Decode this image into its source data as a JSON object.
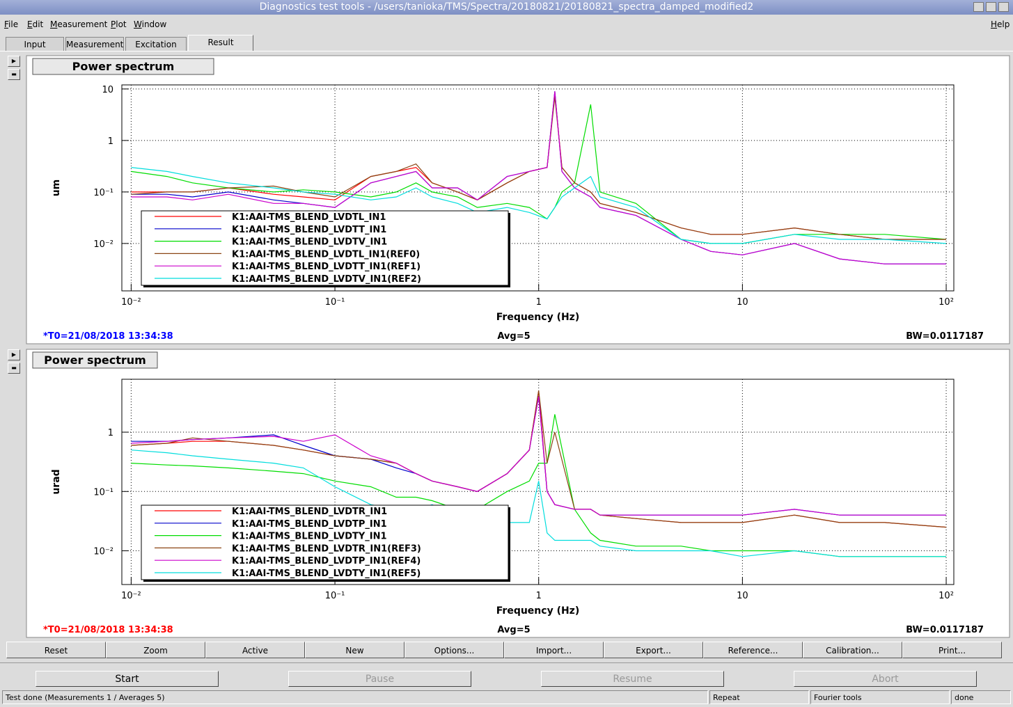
{
  "window_title": "Diagnostics test tools - /users/tanioka/TMS/Spectra/20180821/20180821_spectra_damped_modified2",
  "menu": [
    "File",
    "Edit",
    "Measurement",
    "Plot",
    "Window",
    "Help"
  ],
  "tabs": [
    "Input",
    "Measurement",
    "Excitation",
    "Result"
  ],
  "buttons": [
    "Reset",
    "Zoom",
    "Active",
    "New",
    "Options...",
    "Import...",
    "Export...",
    "Reference...",
    "Calibration...",
    "Print..."
  ],
  "controls": [
    "Start",
    "Pause",
    "Resume",
    "Abort"
  ],
  "status": [
    "Test done (Measurements 1 / Averages 5)",
    "Repeat",
    "Fourier tools",
    "done"
  ],
  "chart_data": [
    {
      "type": "line",
      "title": "Power spectrum",
      "xlabel": "Frequency (Hz)",
      "ylabel": "um",
      "xlog": true,
      "ylog": true,
      "grid": true,
      "t0": "*T0=21/08/2018 13:34:38",
      "t0_color": "#0000ff",
      "avg": "Avg=5",
      "bw": "BW=0.0117187",
      "xlim": [
        0.009,
        109
      ],
      "ylim": [
        0.0012,
        12
      ],
      "xticks": [
        {
          "value": 0.01,
          "label": "10⁻²"
        },
        {
          "value": 0.1,
          "label": "10⁻¹"
        },
        1,
        10,
        {
          "value": 100,
          "label": "10²"
        }
      ],
      "yticks": [
        10,
        1,
        {
          "value": 0.1,
          "label": "10⁻¹"
        },
        {
          "value": 0.01,
          "label": "10⁻²"
        }
      ],
      "x": [
        0.01,
        0.015,
        0.02,
        0.03,
        0.05,
        0.07,
        0.1,
        0.15,
        0.2,
        0.25,
        0.3,
        0.4,
        0.5,
        0.7,
        0.9,
        1.1,
        1.2,
        1.3,
        1.5,
        1.8,
        2,
        3,
        5,
        7,
        10,
        18,
        30,
        50,
        100
      ],
      "series": [
        {
          "name": "K1:AAI-TMS_BLEND_LVDTL_IN1",
          "color": "#ff0000",
          "values": [
            0.1,
            0.1,
            0.1,
            0.12,
            0.09,
            0.08,
            0.07,
            0.2,
            0.25,
            0.3,
            0.15,
            0.1,
            0.07,
            0.15,
            0.25,
            0.3,
            8,
            0.3,
            0.15,
            0.1,
            0.06,
            0.04,
            0.02,
            0.015,
            0.015,
            0.02,
            0.015,
            0.012,
            0.012
          ]
        },
        {
          "name": "K1:AAI-TMS_BLEND_LVDTT_IN1",
          "color": "#0000cc",
          "values": [
            0.09,
            0.09,
            0.08,
            0.1,
            0.07,
            0.06,
            0.05,
            0.15,
            0.2,
            0.25,
            0.12,
            0.12,
            0.07,
            0.2,
            0.25,
            0.3,
            9,
            0.25,
            0.12,
            0.08,
            0.05,
            0.035,
            0.012,
            0.007,
            0.006,
            0.01,
            0.005,
            0.004,
            0.004
          ]
        },
        {
          "name": "K1:AAI-TMS_BLEND_LVDTV_IN1",
          "color": "#00dd00",
          "values": [
            0.25,
            0.2,
            0.15,
            0.12,
            0.1,
            0.11,
            0.1,
            0.08,
            0.1,
            0.15,
            0.1,
            0.08,
            0.05,
            0.06,
            0.05,
            0.03,
            0.05,
            0.1,
            0.15,
            5,
            0.1,
            0.06,
            0.012,
            0.01,
            0.01,
            0.015,
            0.015,
            0.015,
            0.012
          ]
        },
        {
          "name": "K1:AAI-TMS_BLEND_LVDTL_IN1(REF0)",
          "color": "#8b4513",
          "values": [
            0.09,
            0.1,
            0.1,
            0.12,
            0.13,
            0.1,
            0.08,
            0.2,
            0.25,
            0.35,
            0.15,
            0.1,
            0.07,
            0.15,
            0.25,
            0.3,
            7,
            0.3,
            0.15,
            0.1,
            0.06,
            0.04,
            0.02,
            0.015,
            0.015,
            0.02,
            0.015,
            0.012,
            0.012
          ]
        },
        {
          "name": "K1:AAI-TMS_BLEND_LVDTT_IN1(REF1)",
          "color": "#cc00cc",
          "values": [
            0.08,
            0.08,
            0.07,
            0.09,
            0.06,
            0.06,
            0.05,
            0.15,
            0.2,
            0.25,
            0.12,
            0.12,
            0.07,
            0.2,
            0.25,
            0.3,
            9,
            0.25,
            0.12,
            0.08,
            0.05,
            0.035,
            0.012,
            0.007,
            0.006,
            0.01,
            0.005,
            0.004,
            0.004
          ]
        },
        {
          "name": "K1:AAI-TMS_BLEND_LVDTV_IN1(REF2)",
          "color": "#00dddd",
          "values": [
            0.3,
            0.25,
            0.2,
            0.15,
            0.12,
            0.1,
            0.09,
            0.07,
            0.08,
            0.12,
            0.08,
            0.06,
            0.04,
            0.05,
            0.04,
            0.03,
            0.05,
            0.08,
            0.12,
            0.2,
            0.08,
            0.05,
            0.012,
            0.01,
            0.01,
            0.015,
            0.012,
            0.012,
            0.01
          ]
        }
      ]
    },
    {
      "type": "line",
      "title": "Power spectrum",
      "xlabel": "Frequency (Hz)",
      "ylabel": "urad",
      "xlog": true,
      "ylog": true,
      "grid": true,
      "t0": "*T0=21/08/2018 13:34:38",
      "t0_color": "#ff0000",
      "avg": "Avg=5",
      "bw": "BW=0.0117187",
      "xlim": [
        0.009,
        109
      ],
      "ylim": [
        0.0027,
        7.8
      ],
      "xticks": [
        {
          "value": 0.01,
          "label": "10⁻²"
        },
        {
          "value": 0.1,
          "label": "10⁻¹"
        },
        1,
        10,
        {
          "value": 100,
          "label": "10²"
        }
      ],
      "yticks": [
        1,
        {
          "value": 0.1,
          "label": "10⁻¹"
        },
        {
          "value": 0.01,
          "label": "10⁻²"
        }
      ],
      "x": [
        0.01,
        0.015,
        0.02,
        0.03,
        0.05,
        0.07,
        0.1,
        0.15,
        0.2,
        0.25,
        0.3,
        0.4,
        0.5,
        0.7,
        0.9,
        1,
        1.1,
        1.2,
        1.5,
        1.8,
        2,
        3,
        5,
        7,
        10,
        18,
        30,
        50,
        100
      ],
      "series": [
        {
          "name": "K1:AAI-TMS_BLEND_LVDTR_IN1",
          "color": "#ff0000",
          "values": [
            0.6,
            0.65,
            0.7,
            0.7,
            0.6,
            0.5,
            0.4,
            0.35,
            0.3,
            0.2,
            0.15,
            0.12,
            0.1,
            0.2,
            0.5,
            5,
            0.1,
            0.06,
            0.05,
            0.05,
            0.04,
            0.035,
            0.03,
            0.03,
            0.03,
            0.04,
            0.03,
            0.03,
            0.025
          ]
        },
        {
          "name": "K1:AAI-TMS_BLEND_LVDTP_IN1",
          "color": "#0000cc",
          "values": [
            0.7,
            0.7,
            0.75,
            0.8,
            0.9,
            0.6,
            0.4,
            0.35,
            0.25,
            0.2,
            0.15,
            0.12,
            0.1,
            0.2,
            0.5,
            4,
            0.1,
            0.06,
            0.05,
            0.05,
            0.04,
            0.04,
            0.04,
            0.04,
            0.04,
            0.05,
            0.04,
            0.04,
            0.04
          ]
        },
        {
          "name": "K1:AAI-TMS_BLEND_LVDTY_IN1",
          "color": "#00dd00",
          "values": [
            0.3,
            0.28,
            0.27,
            0.25,
            0.22,
            0.2,
            0.15,
            0.12,
            0.08,
            0.08,
            0.07,
            0.05,
            0.05,
            0.1,
            0.15,
            0.3,
            0.3,
            2,
            0.05,
            0.02,
            0.015,
            0.012,
            0.012,
            0.01,
            0.01,
            0.01,
            0.008,
            0.008,
            0.008
          ]
        },
        {
          "name": "K1:AAI-TMS_BLEND_LVDTR_IN1(REF3)",
          "color": "#8b4513",
          "values": [
            0.6,
            0.65,
            0.8,
            0.7,
            0.6,
            0.5,
            0.4,
            0.35,
            0.3,
            0.2,
            0.15,
            0.12,
            0.1,
            0.2,
            0.5,
            5,
            0.3,
            1,
            0.05,
            0.05,
            0.04,
            0.035,
            0.03,
            0.03,
            0.03,
            0.04,
            0.03,
            0.03,
            0.025
          ]
        },
        {
          "name": "K1:AAI-TMS_BLEND_LVDTP_IN1(REF4)",
          "color": "#cc00cc",
          "values": [
            0.65,
            0.7,
            0.75,
            0.8,
            0.85,
            0.7,
            0.9,
            0.4,
            0.3,
            0.2,
            0.15,
            0.12,
            0.1,
            0.2,
            0.5,
            4,
            0.1,
            0.06,
            0.05,
            0.05,
            0.04,
            0.04,
            0.04,
            0.04,
            0.04,
            0.05,
            0.04,
            0.04,
            0.04
          ]
        },
        {
          "name": "K1:AAI-TMS_BLEND_LVDTY_IN1(REF5)",
          "color": "#00dddd",
          "values": [
            0.5,
            0.45,
            0.4,
            0.35,
            0.3,
            0.25,
            0.12,
            0.06,
            0.05,
            0.05,
            0.06,
            0.04,
            0.04,
            0.03,
            0.03,
            0.15,
            0.02,
            0.015,
            0.015,
            0.015,
            0.012,
            0.01,
            0.01,
            0.01,
            0.008,
            0.01,
            0.008,
            0.008,
            0.008
          ]
        }
      ]
    }
  ]
}
